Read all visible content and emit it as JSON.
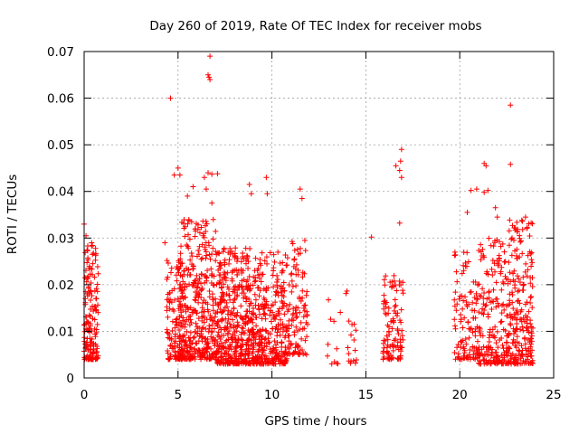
{
  "chart_data": {
    "type": "scatter",
    "title": "Day 260 of 2019, Rate Of TEC Index for receiver mobs",
    "xlabel": "GPS time / hours",
    "ylabel": "ROTI / TECUs",
    "xlim": [
      0,
      25
    ],
    "ylim": [
      0,
      0.07
    ],
    "x_ticks": [
      0,
      5,
      10,
      15,
      20,
      25
    ],
    "y_ticks": [
      0,
      0.01,
      0.02,
      0.03,
      0.04,
      0.05,
      0.06,
      0.07
    ],
    "grid": true,
    "marker": "plus",
    "marker_color": "#ff0000",
    "clusters": [
      {
        "x": [
          0.0,
          0.75
        ],
        "y": [
          0.004,
          0.029
        ],
        "n": 160
      },
      {
        "x": [
          4.4,
          5.4
        ],
        "y": [
          0.004,
          0.026
        ],
        "n": 120
      },
      {
        "x": [
          5.0,
          7.0
        ],
        "y": [
          0.004,
          0.034
        ],
        "n": 380
      },
      {
        "x": [
          7.0,
          9.0
        ],
        "y": [
          0.003,
          0.028
        ],
        "n": 420
      },
      {
        "x": [
          9.0,
          10.8
        ],
        "y": [
          0.003,
          0.027
        ],
        "n": 320
      },
      {
        "x": [
          10.8,
          11.9
        ],
        "y": [
          0.005,
          0.03
        ],
        "n": 110
      },
      {
        "x": [
          12.9,
          14.6
        ],
        "y": [
          0.003,
          0.021
        ],
        "n": 28
      },
      {
        "x": [
          15.9,
          17.0
        ],
        "y": [
          0.004,
          0.022
        ],
        "n": 110
      },
      {
        "x": [
          19.7,
          21.0
        ],
        "y": [
          0.004,
          0.027
        ],
        "n": 110
      },
      {
        "x": [
          21.0,
          22.6
        ],
        "y": [
          0.003,
          0.03
        ],
        "n": 200
      },
      {
        "x": [
          22.6,
          23.9
        ],
        "y": [
          0.003,
          0.034
        ],
        "n": 220
      }
    ],
    "points": [
      [
        4.6,
        0.06
      ],
      [
        6.6,
        0.065
      ],
      [
        6.7,
        0.064
      ],
      [
        6.65,
        0.0645
      ],
      [
        6.7,
        0.069
      ],
      [
        22.7,
        0.0585
      ],
      [
        22.7,
        0.0458
      ],
      [
        16.9,
        0.049
      ],
      [
        16.85,
        0.0465
      ],
      [
        16.6,
        0.0455
      ],
      [
        16.8,
        0.0445
      ],
      [
        16.9,
        0.043
      ],
      [
        0.0,
        0.033
      ],
      [
        0.1,
        0.0305
      ],
      [
        0.4,
        0.029
      ],
      [
        4.3,
        0.029
      ],
      [
        4.8,
        0.0435
      ],
      [
        5.0,
        0.045
      ],
      [
        5.1,
        0.0435
      ],
      [
        6.4,
        0.043
      ],
      [
        6.6,
        0.044
      ],
      [
        6.8,
        0.0437
      ],
      [
        7.1,
        0.0438
      ],
      [
        6.5,
        0.0405
      ],
      [
        6.8,
        0.0375
      ],
      [
        5.5,
        0.039
      ],
      [
        5.8,
        0.041
      ],
      [
        8.8,
        0.0415
      ],
      [
        8.9,
        0.0395
      ],
      [
        9.7,
        0.043
      ],
      [
        9.75,
        0.0395
      ],
      [
        11.5,
        0.0405
      ],
      [
        11.6,
        0.0385
      ],
      [
        15.3,
        0.0302
      ],
      [
        16.8,
        0.0332
      ],
      [
        20.4,
        0.0355
      ],
      [
        20.6,
        0.0402
      ],
      [
        20.9,
        0.0405
      ],
      [
        21.3,
        0.046
      ],
      [
        21.4,
        0.0455
      ],
      [
        21.3,
        0.0398
      ],
      [
        21.5,
        0.0402
      ],
      [
        21.9,
        0.0365
      ],
      [
        22.0,
        0.0345
      ],
      [
        23.5,
        0.0345
      ],
      [
        23.3,
        0.0338
      ],
      [
        22.9,
        0.0322
      ]
    ]
  }
}
